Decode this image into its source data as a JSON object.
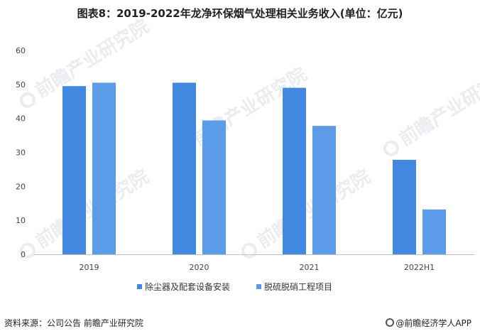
{
  "title": "图表8：2019-2022年龙净环保烟气处理相关业务收入(单位：亿元)",
  "watermark_text": "前瞻产业研究院",
  "footer": {
    "source": "资料来源：公司公告 前瞻产业研究院",
    "brand": "@前瞻经济学人APP"
  },
  "chart_data": {
    "type": "bar",
    "categories": [
      "2019",
      "2020",
      "2021",
      "2022H1"
    ],
    "series": [
      {
        "name": "除尘器及配套设备安装",
        "values": [
          49.5,
          50.5,
          49,
          27.8
        ],
        "color": "#4287e0"
      },
      {
        "name": "脱硫脱硝工程项目",
        "values": [
          50.5,
          39.4,
          37.8,
          13.2
        ],
        "color": "#5b9be8"
      }
    ],
    "ylim": [
      0,
      60
    ],
    "yticks": [
      0,
      10,
      20,
      30,
      40,
      50,
      60
    ],
    "grid": false,
    "legend": "bottom",
    "xlabel": "",
    "ylabel": ""
  }
}
